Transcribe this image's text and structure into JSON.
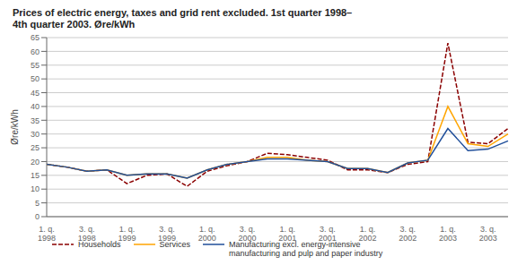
{
  "chart_data": {
    "type": "line",
    "title": "Prices of electric energy, taxes and grid rent excluded. 1st quarter 1998–\n4th quarter 2003. Øre/kWh",
    "ylabel": "Øre/kWh",
    "categories": [
      "1. q.\n1998",
      null,
      "3. q.\n1998",
      null,
      "1. q.\n1999",
      null,
      "3. q.\n1999",
      null,
      "1. q.\n2000",
      null,
      "3. q.\n2000",
      null,
      "1. q.\n2001",
      null,
      "3. q.\n2001",
      null,
      "1. q.\n2002",
      null,
      "3. q.\n2002",
      null,
      "1. q.\n2003",
      null,
      "3. q.\n2003",
      null
    ],
    "series": [
      {
        "name": "Households",
        "color": "#8B0000",
        "line_style": "dashed",
        "values": [
          19.0,
          18.0,
          16.5,
          17.0,
          12.0,
          15.0,
          15.5,
          11.0,
          16.5,
          18.5,
          20.0,
          23.0,
          22.5,
          21.5,
          20.5,
          17.0,
          17.0,
          16.0,
          19.0,
          20.0,
          63.0,
          27.0,
          26.5,
          32.0
        ]
      },
      {
        "name": "Services",
        "color": "#FFA500",
        "line_style": "solid",
        "values": [
          19.0,
          18.0,
          16.5,
          17.0,
          15.0,
          15.5,
          15.5,
          14.0,
          17.0,
          19.0,
          20.0,
          21.5,
          21.5,
          20.5,
          20.0,
          17.5,
          17.5,
          16.0,
          19.5,
          20.5,
          40.0,
          26.5,
          25.5,
          30.0
        ]
      },
      {
        "name": "Manufacturing excl. energy-intensive\nmanufacturing and pulp and paper industry",
        "color": "#1F4E9A",
        "line_style": "solid",
        "values": [
          19.0,
          18.0,
          16.5,
          17.0,
          15.0,
          15.5,
          15.5,
          14.0,
          17.0,
          19.0,
          20.0,
          21.0,
          21.0,
          20.5,
          20.0,
          17.5,
          17.5,
          16.0,
          19.5,
          20.5,
          32.0,
          24.0,
          24.5,
          27.5
        ]
      }
    ],
    "ylim": [
      0,
      65
    ],
    "yticks": [
      0,
      5,
      10,
      15,
      20,
      25,
      30,
      35,
      40,
      45,
      50,
      55,
      60,
      65
    ],
    "grid": true,
    "legend": "bottom"
  }
}
